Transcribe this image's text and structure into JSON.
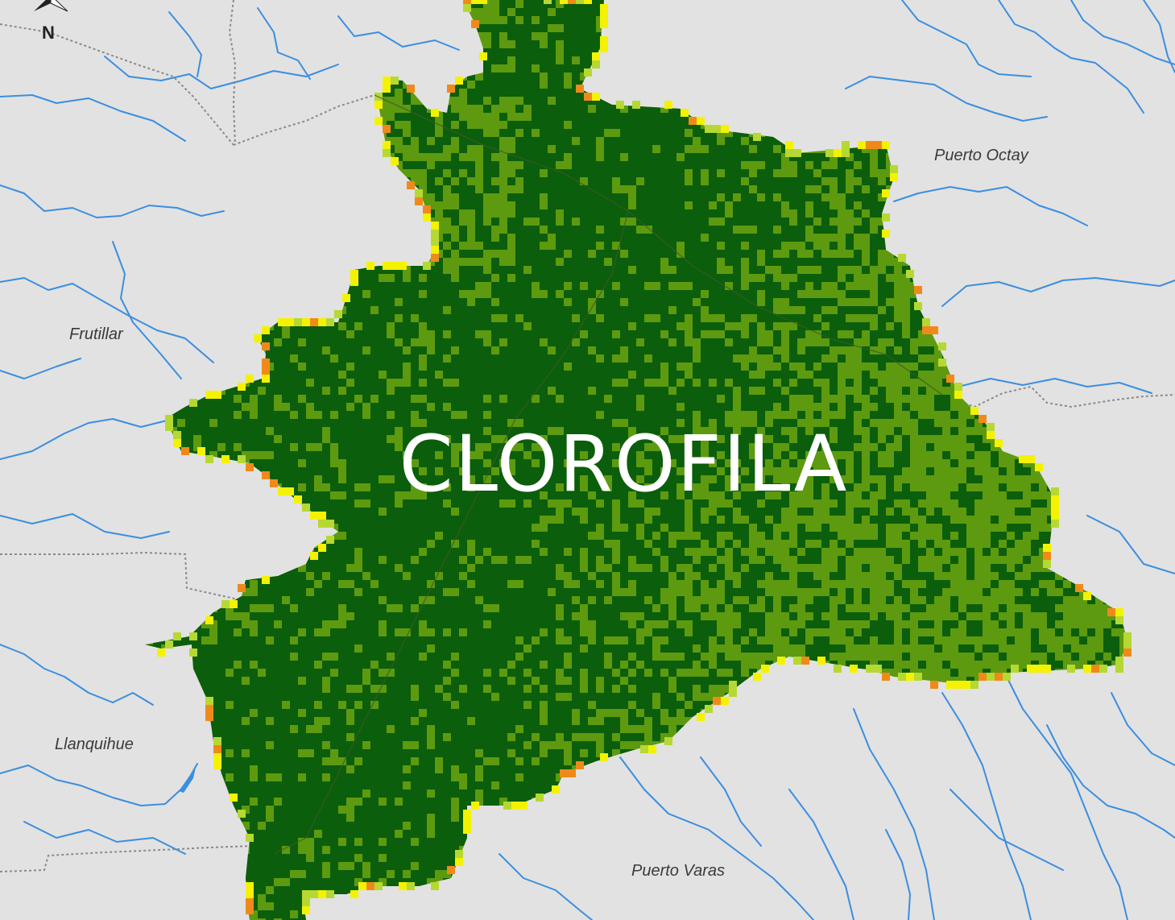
{
  "map": {
    "title": "CLOROFILA",
    "north_arrow": {
      "label": "N"
    },
    "places": {
      "puerto_octay": "Puerto Octay",
      "frutillar": "Frutillar",
      "llanquihue": "Llanquihue",
      "puerto_varas": "Puerto Varas"
    },
    "colors": {
      "land": "#e2e2e2",
      "rivers": "#3b8ee0",
      "boundaries": "#8a8a8a",
      "chlorophyll_very_high": "#0b5e0b",
      "chlorophyll_high": "#5d9a0f",
      "chlorophyll_medium": "#b6d832",
      "chlorophyll_low": "#f4f200",
      "chlorophyll_lowest": "#ef8a1a"
    }
  }
}
